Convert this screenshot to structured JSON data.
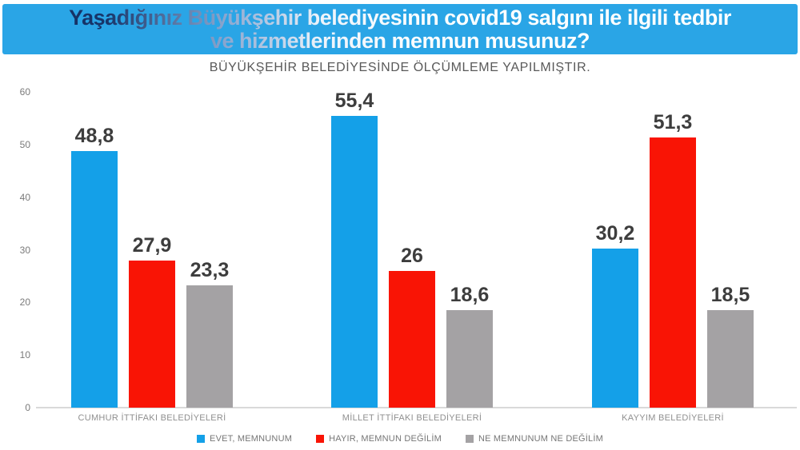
{
  "header": {
    "title_line1": "Yaşadığınız Büyükşehir belediyesinin covid19 salgını ile ilgili tedbir",
    "title_line2": "ve hizmetlerinden memnun musunuz?"
  },
  "colors": {
    "banner_blue": "#2aa5e6",
    "title_navy": "#173569",
    "title_white": "#ffffff",
    "subtitle_gray": "#595959",
    "bar_blue": "#14a0e8",
    "bar_red": "#f91405",
    "bar_gray": "#a4a2a4",
    "value_label_gray": "#3d3d3d",
    "axis_gray": "#7a7a7a"
  },
  "chart_data": {
    "type": "bar",
    "title": "Yaşadığınız Büyükşehir belediyesinin covid19 salgını ile ilgili tedbir ve hizmetlerinden memnun musunuz?",
    "subtitle": "BÜYÜKŞEHİR BELEDİYESİNDE ÖLÇÜMLEME YAPILMIŞTIR.",
    "categories": [
      "CUMHUR İTTİFAKI BELEDİYELERİ",
      "MİLLET İTTİFAKI BELEDİYELERİ",
      "KAYYIM BELEDİYELERİ"
    ],
    "series": [
      {
        "name": "EVET, MEMNUNUM",
        "color": "#14a0e8",
        "values": [
          48.8,
          55.4,
          30.2
        ],
        "labels": [
          "48,8",
          "55,4",
          "30,2"
        ]
      },
      {
        "name": "HAYIR, MEMNUN DEĞİLİM",
        "color": "#f91405",
        "values": [
          27.9,
          26,
          51.3
        ],
        "labels": [
          "27,9",
          "26",
          "51,3"
        ]
      },
      {
        "name": "NE MEMNUNUM NE DEĞİLİM",
        "color": "#a4a2a4",
        "values": [
          23.3,
          18.6,
          18.5
        ],
        "labels": [
          "23,3",
          "18,6",
          "18,5"
        ]
      }
    ],
    "xlabel": "",
    "ylabel": "",
    "ylim": [
      0,
      60
    ],
    "yticks": [
      0,
      10,
      20,
      30,
      40,
      50,
      60
    ],
    "grid": false,
    "legend_position": "bottom"
  }
}
